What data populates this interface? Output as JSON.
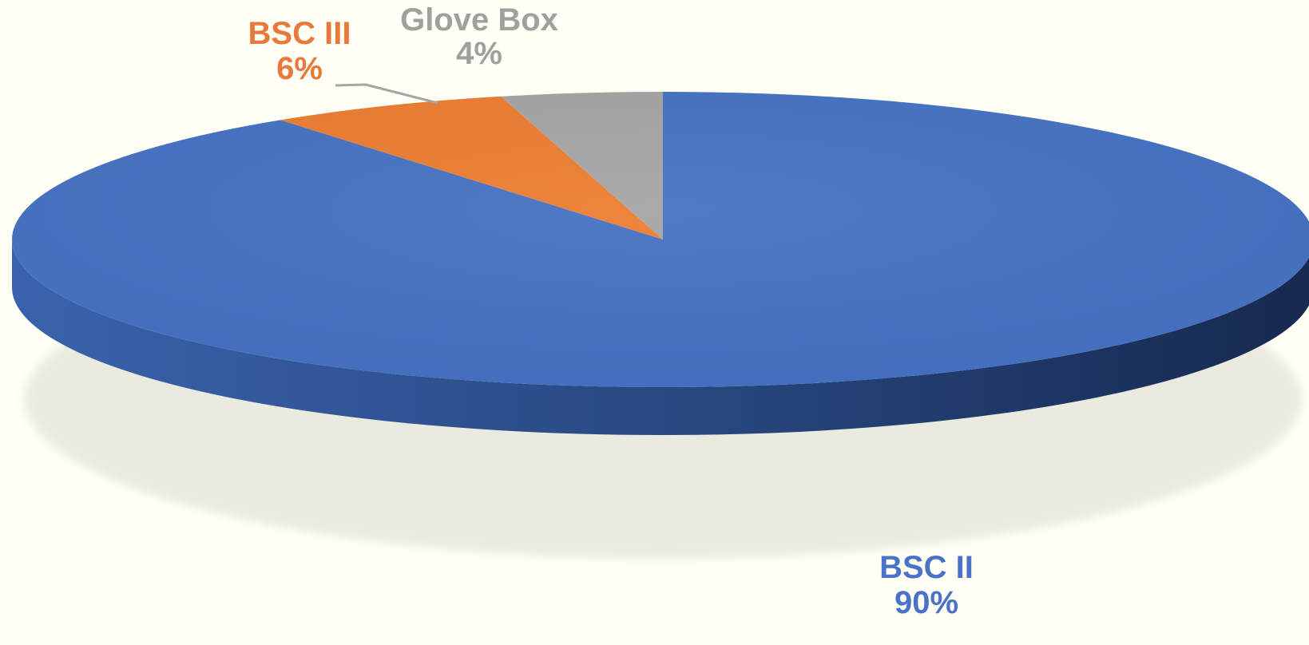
{
  "chart_data": {
    "type": "pie",
    "style": "3d",
    "slices": [
      {
        "label": "BSC II",
        "value": 90,
        "display": "90%",
        "color": "#4472c4"
      },
      {
        "label": "BSC III",
        "value": 6,
        "display": "6%",
        "color": "#ed7d31"
      },
      {
        "label": "Glove Box",
        "value": 4,
        "display": "4%",
        "color": "#a5a5a5"
      }
    ],
    "start_angle_deg": 0,
    "direction": "clockwise",
    "background": "#fffff5"
  }
}
